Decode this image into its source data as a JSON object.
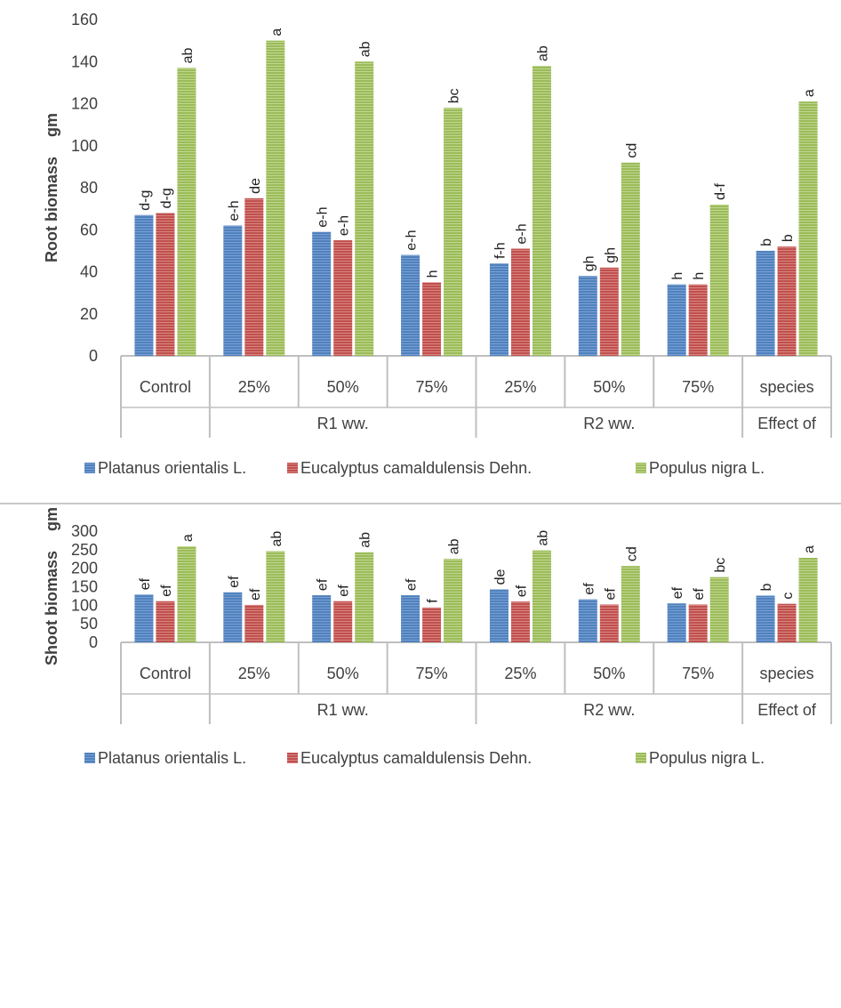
{
  "colors": {
    "platanus": "#4f81bd",
    "eucalyptus": "#c0504d",
    "populus": "#9bbb59",
    "axis": "#bfbfbf",
    "text": "#404040"
  },
  "chart_data": [
    {
      "type": "bar",
      "ylabel": "Root biomass gm",
      "ylabel_parts": [
        "Root biomass",
        "gm"
      ],
      "ylim": [
        0,
        160
      ],
      "yticks": [
        0,
        20,
        40,
        60,
        80,
        100,
        120,
        140,
        160
      ],
      "grid": false,
      "legend_position": "bottom",
      "categories": [
        "Control",
        "25%",
        "50%",
        "75%",
        "25%",
        "50%",
        "75%",
        "species"
      ],
      "groups": [
        {
          "label": "",
          "span": 1
        },
        {
          "label": "R1 ww.",
          "span": 3
        },
        {
          "label": "R2 ww.",
          "span": 3
        },
        {
          "label": "Effect of",
          "span": 1
        }
      ],
      "series": [
        {
          "name": "Platanus orientalis L.",
          "values": [
            67,
            62,
            59,
            48,
            44,
            38,
            34,
            50
          ],
          "labels": [
            "d-g",
            "e-h",
            "e-h",
            "e-h",
            "f-h",
            "gh",
            "h",
            "b"
          ]
        },
        {
          "name": "Eucalyptus camaldulensis Dehn.",
          "values": [
            68,
            75,
            55,
            35,
            51,
            42,
            34,
            52
          ],
          "labels": [
            "d-g",
            "de",
            "e-h",
            "h",
            "e-h",
            "gh",
            "h",
            "b"
          ]
        },
        {
          "name": "Populus nigra L.",
          "values": [
            137,
            150,
            140,
            118,
            138,
            92,
            72,
            121
          ],
          "labels": [
            "ab",
            "a",
            "ab",
            "bc",
            "ab",
            "cd",
            "d-f",
            "a"
          ]
        }
      ]
    },
    {
      "type": "bar",
      "ylabel": "Shoot biomass gm",
      "ylabel_parts": [
        "Shoot biomass",
        "gm"
      ],
      "ylim": [
        0,
        300
      ],
      "yticks": [
        0,
        50,
        100,
        150,
        200,
        250,
        300
      ],
      "grid": false,
      "legend_position": "bottom",
      "categories": [
        "Control",
        "25%",
        "50%",
        "75%",
        "25%",
        "50%",
        "75%",
        "species"
      ],
      "groups": [
        {
          "label": "",
          "span": 1
        },
        {
          "label": "R1 ww.",
          "span": 3
        },
        {
          "label": "R2 ww.",
          "span": 3
        },
        {
          "label": "Effect of",
          "span": 1
        }
      ],
      "series": [
        {
          "name": "Platanus orientalis L.",
          "values": [
            129,
            135,
            127,
            127,
            143,
            116,
            105,
            126
          ],
          "labels": [
            "ef",
            "ef",
            "ef",
            "ef",
            "de",
            "ef",
            "ef",
            "b"
          ]
        },
        {
          "name": "Eucalyptus camaldulensis Dehn.",
          "values": [
            111,
            101,
            111,
            94,
            110,
            102,
            102,
            104
          ],
          "labels": [
            "ef",
            "ef",
            "ef",
            "f",
            "ef",
            "ef",
            "ef",
            "c"
          ]
        },
        {
          "name": "Populus nigra L.",
          "values": [
            259,
            246,
            243,
            225,
            248,
            206,
            176,
            228
          ],
          "labels": [
            "a",
            "ab",
            "ab",
            "ab",
            "ab",
            "cd",
            "bc",
            "a"
          ]
        }
      ]
    }
  ]
}
